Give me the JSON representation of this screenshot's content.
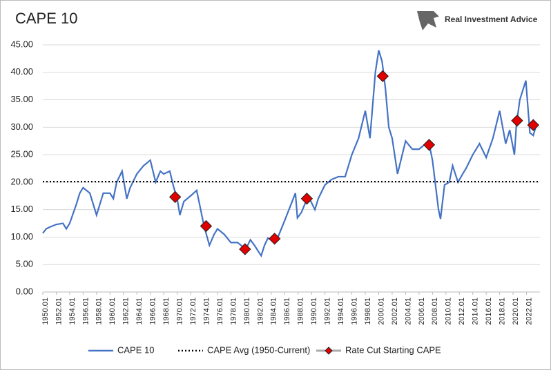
{
  "chart_data": {
    "type": "line",
    "title": "CAPE 10",
    "source": "Real Investment Advice",
    "xlim": [
      1950,
      2024
    ],
    "xticks": [
      {
        "value": 1950,
        "label": "1950.01"
      },
      {
        "value": 1952,
        "label": "1952.01"
      },
      {
        "value": 1954,
        "label": "1954.01"
      },
      {
        "value": 1956,
        "label": "1956.01"
      },
      {
        "value": 1958,
        "label": "1958.01"
      },
      {
        "value": 1960,
        "label": "1960.01"
      },
      {
        "value": 1962,
        "label": "1962.01"
      },
      {
        "value": 1964,
        "label": "1964.01"
      },
      {
        "value": 1966,
        "label": "1966.01"
      },
      {
        "value": 1968,
        "label": "1968.01"
      },
      {
        "value": 1970,
        "label": "1970.01"
      },
      {
        "value": 1972,
        "label": "1972.01"
      },
      {
        "value": 1974,
        "label": "1974.01"
      },
      {
        "value": 1976,
        "label": "1976.01"
      },
      {
        "value": 1978,
        "label": "1978.01"
      },
      {
        "value": 1980,
        "label": "1980.01"
      },
      {
        "value": 1982,
        "label": "1982.01"
      },
      {
        "value": 1984,
        "label": "1984.01"
      },
      {
        "value": 1986,
        "label": "1986.01"
      },
      {
        "value": 1988,
        "label": "1988.01"
      },
      {
        "value": 1990,
        "label": "1990.01"
      },
      {
        "value": 1992,
        "label": "1992.01"
      },
      {
        "value": 1994,
        "label": "1994.01"
      },
      {
        "value": 1996,
        "label": "1996.01"
      },
      {
        "value": 1998,
        "label": "1998.01"
      },
      {
        "value": 2000,
        "label": "2000.01"
      },
      {
        "value": 2002,
        "label": "2002.01"
      },
      {
        "value": 2004,
        "label": "2004.01"
      },
      {
        "value": 2006,
        "label": "2006.01"
      },
      {
        "value": 2008,
        "label": "2008.01"
      },
      {
        "value": 2010,
        "label": "2010.01"
      },
      {
        "value": 2012,
        "label": "2012.01"
      },
      {
        "value": 2014,
        "label": "2014.01"
      },
      {
        "value": 2016,
        "label": "2016.01"
      },
      {
        "value": 2018,
        "label": "2018.01"
      },
      {
        "value": 2020,
        "label": "2020.01"
      },
      {
        "value": 2022,
        "label": "2022.01"
      }
    ],
    "ylim": [
      0,
      45
    ],
    "yticks": [
      {
        "value": 0,
        "label": "0.00"
      },
      {
        "value": 5,
        "label": "5.00"
      },
      {
        "value": 10,
        "label": "10.00"
      },
      {
        "value": 15,
        "label": "15.00"
      },
      {
        "value": 20,
        "label": "20.00"
      },
      {
        "value": 25,
        "label": "25.00"
      },
      {
        "value": 30,
        "label": "30.00"
      },
      {
        "value": 35,
        "label": "35.00"
      },
      {
        "value": 40,
        "label": "40.00"
      },
      {
        "value": 45,
        "label": "45.00"
      }
    ],
    "grid": true,
    "series": [
      {
        "name": "CAPE 10",
        "color": "#4472c4",
        "x": [
          1950,
          1950.5,
          1951,
          1952,
          1953,
          1953.5,
          1954,
          1955,
          1955.5,
          1956,
          1957,
          1957.5,
          1958,
          1958.5,
          1959,
          1960,
          1960.5,
          1961,
          1961.8,
          1962.5,
          1963,
          1964,
          1965,
          1966,
          1966.8,
          1967.5,
          1968,
          1968.9,
          1969.5,
          1970,
          1970.4,
          1971,
          1972,
          1972.9,
          1973.5,
          1974,
          1974.8,
          1975.5,
          1976,
          1977,
          1978,
          1979,
          1980.2,
          1980.9,
          1981.5,
          1982.5,
          1983,
          1983.5,
          1984.5,
          1985,
          1986,
          1987.6,
          1987.9,
          1988.5,
          1989.5,
          1990.5,
          1991,
          1992,
          1993,
          1994,
          1995,
          1996,
          1997,
          1998,
          1998.7,
          1999.5,
          2000,
          2000.5,
          2001,
          2001.5,
          2002,
          2002.8,
          2003.5,
          2004,
          2005,
          2006,
          2007,
          2007.5,
          2008,
          2008.9,
          2009.2,
          2009.8,
          2010.5,
          2011,
          2011.8,
          2012.5,
          2013,
          2014,
          2015,
          2016,
          2017,
          2018,
          2018.9,
          2019.5,
          2020.2,
          2020.5,
          2021,
          2021.9,
          2022.5,
          2023,
          2023.5
        ],
        "values": [
          10.7,
          11.5,
          11.8,
          12.3,
          12.5,
          11.5,
          12.5,
          16,
          18,
          19,
          18,
          16,
          14,
          16,
          18,
          18,
          17,
          20,
          22,
          17,
          19,
          21.5,
          23,
          24,
          20,
          22,
          21.5,
          22,
          19,
          17,
          14,
          16.5,
          17.5,
          18.5,
          15,
          12,
          8.5,
          10.5,
          11.5,
          10.5,
          9,
          9,
          7.8,
          9.5,
          8.5,
          6.6,
          8.5,
          9.8,
          9.2,
          10,
          13,
          18,
          13.5,
          14.5,
          17.5,
          15,
          17,
          19.5,
          20.5,
          21,
          21,
          25,
          28,
          33,
          28,
          40,
          44,
          42,
          37,
          30,
          28,
          21.5,
          25,
          27.5,
          26,
          26,
          27,
          27,
          24,
          15,
          13.3,
          19.5,
          20,
          23,
          20,
          21.5,
          22.5,
          25,
          27,
          24.5,
          28,
          33,
          27,
          29.5,
          25,
          30.5,
          35,
          38.5,
          29,
          28.5,
          30.5
        ]
      },
      {
        "name": "CAPE Avg (1950-Current)",
        "color": "#000000",
        "value": 20.1
      },
      {
        "name": "Rate Cut Starting CAPE",
        "color": "#e00000",
        "x": [
          1969.7,
          1974.3,
          1980.1,
          1984.5,
          1989.3,
          2000.6,
          2007.5,
          2020.6,
          2023.0
        ],
        "values": [
          17.3,
          12,
          7.8,
          9.7,
          17,
          39.3,
          26.8,
          31.2,
          30.4
        ]
      }
    ]
  }
}
